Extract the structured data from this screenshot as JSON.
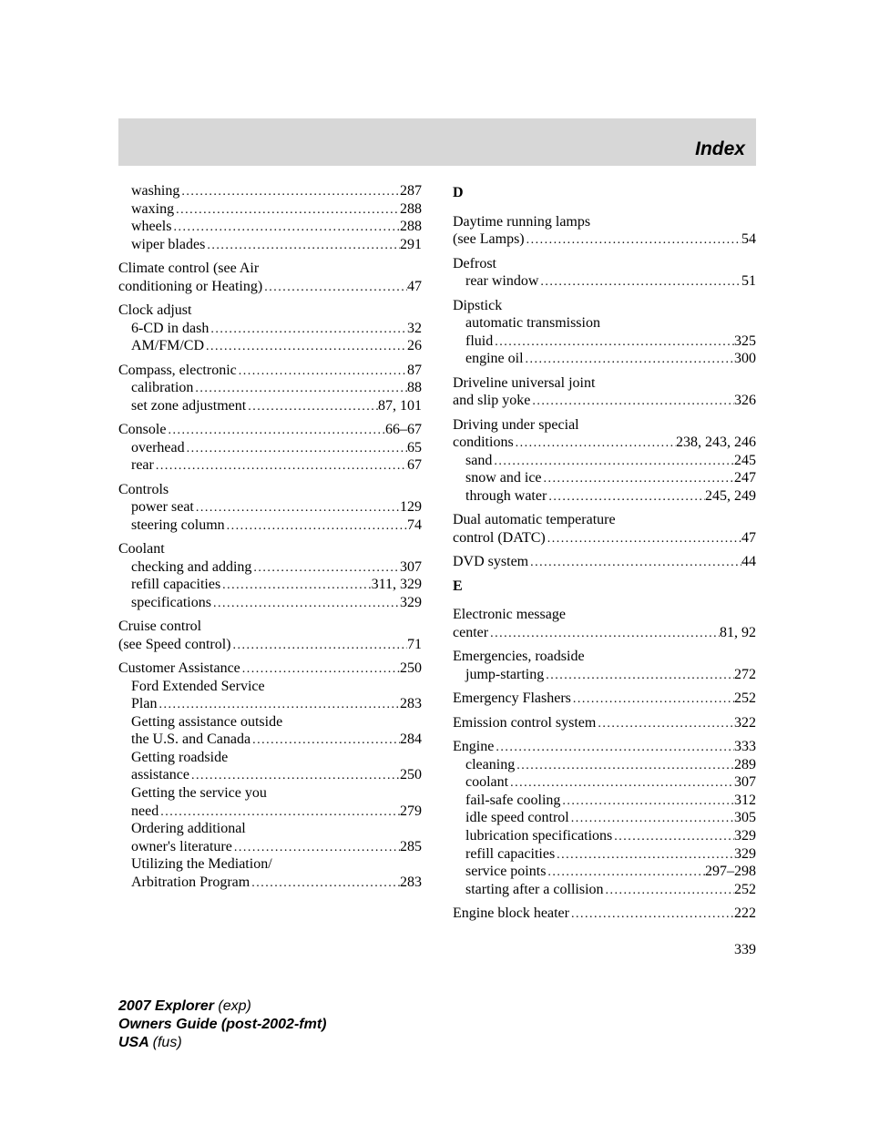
{
  "header": {
    "title": "Index"
  },
  "page_number": "339",
  "footer": {
    "line1_bold": "2007 Explorer ",
    "line1_italic": "(exp)",
    "line2_bold": "Owners Guide (post-2002-fmt)",
    "line3_bold": "USA ",
    "line3_italic": "(fus)"
  },
  "left": [
    {
      "rows": [
        {
          "label": "washing",
          "page": "287",
          "sub": true
        },
        {
          "label": "waxing",
          "page": "288",
          "sub": true
        },
        {
          "label": "wheels",
          "page": "288",
          "sub": true
        },
        {
          "label": "wiper blades",
          "page": "291",
          "sub": true
        }
      ]
    },
    {
      "rows": [
        {
          "label": "Climate control (see Air",
          "noline": true
        },
        {
          "label": "conditioning or Heating)",
          "page": "47"
        }
      ]
    },
    {
      "rows": [
        {
          "label": "Clock adjust",
          "noline": true
        },
        {
          "label": "6-CD in dash",
          "page": "32",
          "sub": true
        },
        {
          "label": "AM/FM/CD",
          "page": "26",
          "sub": true
        }
      ]
    },
    {
      "rows": [
        {
          "label": "Compass, electronic",
          "page": "87"
        },
        {
          "label": "calibration",
          "page": "88",
          "sub": true
        },
        {
          "label": "set zone adjustment",
          "page": "87, 101",
          "sub": true
        }
      ]
    },
    {
      "rows": [
        {
          "label": "Console",
          "page": "66–67"
        },
        {
          "label": "overhead",
          "page": "65",
          "sub": true
        },
        {
          "label": "rear",
          "page": "67",
          "sub": true
        }
      ]
    },
    {
      "rows": [
        {
          "label": "Controls",
          "noline": true
        },
        {
          "label": "power seat",
          "page": "129",
          "sub": true
        },
        {
          "label": "steering column",
          "page": "74",
          "sub": true
        }
      ]
    },
    {
      "rows": [
        {
          "label": "Coolant",
          "noline": true
        },
        {
          "label": "checking and adding",
          "page": "307",
          "sub": true
        },
        {
          "label": "refill capacities",
          "page": "311, 329",
          "sub": true
        },
        {
          "label": "specifications",
          "page": "329",
          "sub": true
        }
      ]
    },
    {
      "rows": [
        {
          "label": "Cruise control",
          "noline": true
        },
        {
          "label": "(see Speed control)",
          "page": "71"
        }
      ]
    },
    {
      "rows": [
        {
          "label": "Customer Assistance",
          "page": "250"
        },
        {
          "label": "Ford Extended Service",
          "noline": true,
          "sub": true
        },
        {
          "label": "Plan",
          "page": "283",
          "sub": true
        },
        {
          "label": "Getting assistance outside",
          "noline": true,
          "sub": true
        },
        {
          "label": "the U.S. and Canada",
          "page": "284",
          "sub": true
        },
        {
          "label": "Getting roadside",
          "noline": true,
          "sub": true
        },
        {
          "label": "assistance",
          "page": "250",
          "sub": true
        },
        {
          "label": "Getting the service you",
          "noline": true,
          "sub": true
        },
        {
          "label": "need",
          "page": "279",
          "sub": true
        },
        {
          "label": "Ordering additional",
          "noline": true,
          "sub": true
        },
        {
          "label": "owner's literature",
          "page": "285",
          "sub": true
        },
        {
          "label": "Utilizing the Mediation/",
          "noline": true,
          "sub": true
        },
        {
          "label": "Arbitration Program",
          "page": "283",
          "sub": true
        }
      ]
    }
  ],
  "right": [
    {
      "letter": "D"
    },
    {
      "rows": [
        {
          "label": "Daytime running lamps",
          "noline": true
        },
        {
          "label": "(see Lamps)",
          "page": "54"
        }
      ]
    },
    {
      "rows": [
        {
          "label": "Defrost",
          "noline": true
        },
        {
          "label": "rear window",
          "page": "51",
          "sub": true
        }
      ]
    },
    {
      "rows": [
        {
          "label": "Dipstick",
          "noline": true
        },
        {
          "label": "automatic transmission",
          "noline": true,
          "sub": true
        },
        {
          "label": "fluid",
          "page": "325",
          "sub": true
        },
        {
          "label": "engine oil",
          "page": "300",
          "sub": true
        }
      ]
    },
    {
      "rows": [
        {
          "label": "Driveline universal joint",
          "noline": true
        },
        {
          "label": "and slip yoke",
          "page": "326"
        }
      ]
    },
    {
      "rows": [
        {
          "label": "Driving under special",
          "noline": true
        },
        {
          "label": "conditions",
          "page": "238, 243, 246"
        },
        {
          "label": "sand",
          "page": "245",
          "sub": true
        },
        {
          "label": "snow and ice",
          "page": "247",
          "sub": true
        },
        {
          "label": "through water",
          "page": "245, 249",
          "sub": true
        }
      ]
    },
    {
      "rows": [
        {
          "label": "Dual automatic temperature",
          "noline": true
        },
        {
          "label": "control (DATC)",
          "page": "47"
        }
      ]
    },
    {
      "rows": [
        {
          "label": "DVD system",
          "page": "44"
        }
      ]
    },
    {
      "letter": "E"
    },
    {
      "rows": [
        {
          "label": "Electronic message",
          "noline": true
        },
        {
          "label": "center",
          "page": "81, 92"
        }
      ]
    },
    {
      "rows": [
        {
          "label": "Emergencies, roadside",
          "noline": true
        },
        {
          "label": "jump-starting",
          "page": "272",
          "sub": true
        }
      ]
    },
    {
      "rows": [
        {
          "label": "Emergency Flashers",
          "page": "252"
        }
      ]
    },
    {
      "rows": [
        {
          "label": "Emission control system",
          "page": "322"
        }
      ]
    },
    {
      "rows": [
        {
          "label": "Engine",
          "page": "333"
        },
        {
          "label": "cleaning",
          "page": "289",
          "sub": true
        },
        {
          "label": "coolant",
          "page": "307",
          "sub": true
        },
        {
          "label": "fail-safe cooling",
          "page": "312",
          "sub": true
        },
        {
          "label": "idle speed control",
          "page": "305",
          "sub": true
        },
        {
          "label": "lubrication specifications",
          "page": "329",
          "sub": true
        },
        {
          "label": "refill capacities",
          "page": "329",
          "sub": true
        },
        {
          "label": "service points",
          "page": "297–298",
          "sub": true
        },
        {
          "label": "starting after a collision",
          "page": "252",
          "sub": true
        }
      ]
    },
    {
      "rows": [
        {
          "label": "Engine block heater",
          "page": "222"
        }
      ]
    }
  ]
}
